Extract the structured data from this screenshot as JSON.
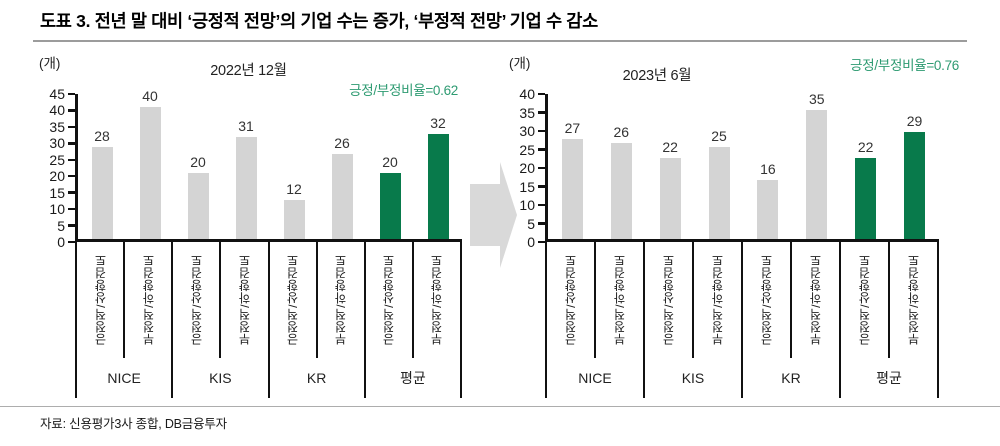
{
  "doc_title": "도표 3. 전년 말 대비 ‘긍정적 전망’의 기업 수는 증가, ‘부정적 전망’ 기업 수 감소",
  "source": "자료: 신용평가3사 종합, DB금융투자",
  "colors": {
    "bar_gray": "#d4d4d4",
    "bar_green": "#087a4b",
    "ratio_green": "#2e9b72",
    "arrow_gray": "#d9d9d9"
  },
  "chart_data": [
    {
      "type": "bar",
      "title": "2022년 12월",
      "unit_label": "(개)",
      "annotation": "긍정/부정비율=0.62",
      "ylabel": "(개)",
      "ylim": [
        0,
        45
      ],
      "ytick_step": 5,
      "grid": false,
      "groups": [
        "NICE",
        "KIS",
        "KR",
        "평균"
      ],
      "pair_labels": [
        "긍정적/상향검토",
        "부정적/하향검토"
      ],
      "categories": [
        "긍정적/상향검토",
        "부정적/하향검토",
        "긍정적/상향검토",
        "부정적/하향검토",
        "긍정적/상향검토",
        "부정적/하향검토",
        "긍정적/상향검토",
        "부정적/하향검토"
      ],
      "values": [
        28,
        40,
        20,
        31,
        12,
        26,
        20,
        32
      ],
      "bar_colors": [
        "gray",
        "gray",
        "gray",
        "gray",
        "gray",
        "gray",
        "green",
        "green"
      ]
    },
    {
      "type": "bar",
      "title": "2023년 6월",
      "unit_label": "(개)",
      "annotation": "긍정/부정비율=0.76",
      "ylabel": "(개)",
      "ylim": [
        0,
        40
      ],
      "ytick_step": 5,
      "grid": false,
      "groups": [
        "NICE",
        "KIS",
        "KR",
        "평균"
      ],
      "pair_labels": [
        "긍정적/상향검토",
        "부정적/하향검토"
      ],
      "categories": [
        "긍정적/상향검토",
        "부정적/하향검토",
        "긍정적/상향검토",
        "부정적/하향검토",
        "긍정적/상향검토",
        "부정적/하향검토",
        "긍정적/상향검토",
        "부정적/하향검토"
      ],
      "values": [
        27,
        26,
        22,
        25,
        16,
        35,
        22,
        29
      ],
      "bar_colors": [
        "gray",
        "gray",
        "gray",
        "gray",
        "gray",
        "gray",
        "green",
        "green"
      ]
    }
  ]
}
